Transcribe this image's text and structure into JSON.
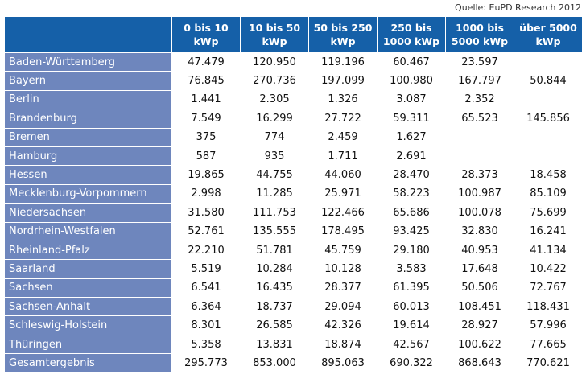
{
  "source": "Quelle: EuPD Research 2012",
  "columns": [
    "0 bis 10\nkWp",
    "10 bis 50\nkWp",
    "50 bis 250\nkWp",
    "250 bis\n1000 kWp",
    "1000 bis\n5000 kWp",
    "über 5000\nkWp"
  ],
  "rows": [
    {
      "name": "Baden-Württemberg",
      "values": [
        "47.479",
        "120.950",
        "119.196",
        "60.467",
        "23.597",
        ""
      ]
    },
    {
      "name": "Bayern",
      "values": [
        "76.845",
        "270.736",
        "197.099",
        "100.980",
        "167.797",
        "50.844"
      ]
    },
    {
      "name": "Berlin",
      "values": [
        "1.441",
        "2.305",
        "1.326",
        "3.087",
        "2.352",
        ""
      ]
    },
    {
      "name": "Brandenburg",
      "values": [
        "7.549",
        "16.299",
        "27.722",
        "59.311",
        "65.523",
        "145.856"
      ]
    },
    {
      "name": "Bremen",
      "values": [
        "375",
        "774",
        "2.459",
        "1.627",
        "",
        ""
      ]
    },
    {
      "name": "Hamburg",
      "values": [
        "587",
        "935",
        "1.711",
        "2.691",
        "",
        ""
      ]
    },
    {
      "name": "Hessen",
      "values": [
        "19.865",
        "44.755",
        "44.060",
        "28.470",
        "28.373",
        "18.458"
      ]
    },
    {
      "name": "Mecklenburg-Vorpommern",
      "values": [
        "2.998",
        "11.285",
        "25.971",
        "58.223",
        "100.987",
        "85.109"
      ]
    },
    {
      "name": "Niedersachsen",
      "values": [
        "31.580",
        "111.753",
        "122.466",
        "65.686",
        "100.078",
        "75.699"
      ]
    },
    {
      "name": "Nordrhein-Westfalen",
      "values": [
        "52.761",
        "135.555",
        "178.495",
        "93.425",
        "32.830",
        "16.241"
      ]
    },
    {
      "name": "Rheinland-Pfalz",
      "values": [
        "22.210",
        "51.781",
        "45.759",
        "29.180",
        "40.953",
        "41.134"
      ]
    },
    {
      "name": "Saarland",
      "values": [
        "5.519",
        "10.284",
        "10.128",
        "3.583",
        "17.648",
        "10.422"
      ]
    },
    {
      "name": "Sachsen",
      "values": [
        "6.541",
        "16.435",
        "28.377",
        "61.395",
        "50.506",
        "72.767"
      ]
    },
    {
      "name": "Sachsen-Anhalt",
      "values": [
        "6.364",
        "18.737",
        "29.094",
        "60.013",
        "108.451",
        "118.431"
      ]
    },
    {
      "name": "Schleswig-Holstein",
      "values": [
        "8.301",
        "26.585",
        "42.326",
        "19.614",
        "28.927",
        "57.996"
      ]
    },
    {
      "name": "Thüringen",
      "values": [
        "5.358",
        "13.831",
        "18.874",
        "42.567",
        "100.622",
        "77.665"
      ]
    },
    {
      "name": "Gesamtergebnis",
      "values": [
        "295.773",
        "853.000",
        "895.063",
        "690.322",
        "868.643",
        "770.621"
      ]
    }
  ]
}
